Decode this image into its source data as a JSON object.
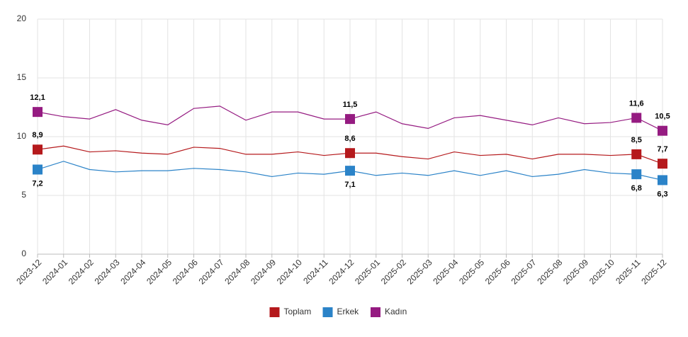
{
  "chart_data": {
    "type": "line",
    "x": [
      "2023-12",
      "2024-01",
      "2024-02",
      "2024-03",
      "2024-04",
      "2024-05",
      "2024-06",
      "2024-07",
      "2024-08",
      "2024-09",
      "2024-10",
      "2024-11",
      "2024-12",
      "2025-01",
      "2025-02",
      "2025-03",
      "2025-04",
      "2025-05",
      "2025-06",
      "2025-07",
      "2025-08",
      "2025-09",
      "2025-10",
      "2025-11",
      "2025-12"
    ],
    "series": [
      {
        "name": "Toplam",
        "color": "#b5191c",
        "values": [
          8.9,
          9.2,
          8.7,
          8.8,
          8.6,
          8.5,
          9.1,
          9.0,
          8.5,
          8.5,
          8.7,
          8.4,
          8.6,
          8.6,
          8.3,
          8.1,
          8.7,
          8.4,
          8.5,
          8.1,
          8.5,
          8.5,
          8.4,
          8.5,
          7.7
        ],
        "value_labels": [
          "8,9",
          null,
          null,
          null,
          null,
          null,
          null,
          null,
          null,
          null,
          null,
          null,
          "8,6",
          null,
          null,
          null,
          null,
          null,
          null,
          null,
          null,
          null,
          null,
          "8,5",
          "7,7"
        ]
      },
      {
        "name": "Erkek",
        "color": "#2b83c8",
        "values": [
          7.2,
          7.9,
          7.2,
          7.0,
          7.1,
          7.1,
          7.3,
          7.2,
          7.0,
          6.6,
          6.9,
          6.8,
          7.1,
          6.7,
          6.9,
          6.7,
          7.1,
          6.7,
          7.1,
          6.6,
          6.8,
          7.2,
          6.9,
          6.8,
          6.3
        ],
        "value_labels": [
          "7,2",
          null,
          null,
          null,
          null,
          null,
          null,
          null,
          null,
          null,
          null,
          null,
          "7,1",
          null,
          null,
          null,
          null,
          null,
          null,
          null,
          null,
          null,
          null,
          "6,8",
          "6,3"
        ]
      },
      {
        "name": "Kadın",
        "color": "#951b81",
        "values": [
          12.1,
          11.7,
          11.5,
          12.3,
          11.4,
          11.0,
          12.4,
          12.6,
          11.4,
          12.1,
          12.1,
          11.5,
          11.5,
          12.1,
          11.1,
          10.7,
          11.6,
          11.8,
          11.4,
          11.0,
          11.6,
          11.1,
          11.2,
          11.6,
          10.5
        ],
        "value_labels": [
          "12,1",
          null,
          null,
          null,
          null,
          null,
          null,
          null,
          null,
          null,
          null,
          null,
          "11,5",
          null,
          null,
          null,
          null,
          null,
          null,
          null,
          null,
          null,
          null,
          "11,6",
          "10,5"
        ]
      }
    ],
    "ylim": [
      0,
      20
    ],
    "yticks": [
      0,
      5,
      10,
      15,
      20
    ],
    "grid": true,
    "legend": "bottom"
  }
}
